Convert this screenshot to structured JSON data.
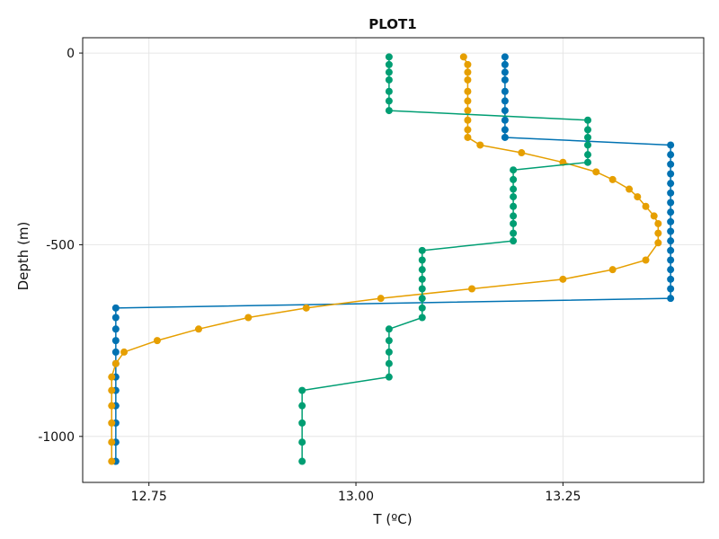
{
  "chart_data": {
    "type": "line",
    "title": "PLOT1",
    "xlabel": "T (ºC)",
    "ylabel": "Depth (m)",
    "xlim": [
      12.67,
      13.42
    ],
    "ylim": [
      -1120,
      40
    ],
    "xticks": [
      12.75,
      13.0,
      13.25
    ],
    "xtick_labels": [
      "12.75",
      "13.00",
      "13.25"
    ],
    "yticks": [
      0,
      -500,
      -1000
    ],
    "ytick_labels": [
      "0",
      "-500",
      "-1000"
    ],
    "grid": true,
    "markers": true,
    "series": [
      {
        "color": "#0072b2",
        "points": [
          [
            13.18,
            -10
          ],
          [
            13.18,
            -30
          ],
          [
            13.18,
            -50
          ],
          [
            13.18,
            -70
          ],
          [
            13.18,
            -100
          ],
          [
            13.18,
            -125
          ],
          [
            13.18,
            -150
          ],
          [
            13.18,
            -175
          ],
          [
            13.18,
            -200
          ],
          [
            13.18,
            -220
          ],
          [
            13.38,
            -240
          ],
          [
            13.38,
            -265
          ],
          [
            13.38,
            -290
          ],
          [
            13.38,
            -315
          ],
          [
            13.38,
            -340
          ],
          [
            13.38,
            -365
          ],
          [
            13.38,
            -390
          ],
          [
            13.38,
            -415
          ],
          [
            13.38,
            -440
          ],
          [
            13.38,
            -465
          ],
          [
            13.38,
            -490
          ],
          [
            13.38,
            -515
          ],
          [
            13.38,
            -540
          ],
          [
            13.38,
            -565
          ],
          [
            13.38,
            -590
          ],
          [
            13.38,
            -615
          ],
          [
            13.38,
            -640
          ],
          [
            12.71,
            -665
          ],
          [
            12.71,
            -690
          ],
          [
            12.71,
            -720
          ],
          [
            12.71,
            -750
          ],
          [
            12.71,
            -780
          ],
          [
            12.71,
            -810
          ],
          [
            12.71,
            -845
          ],
          [
            12.71,
            -880
          ],
          [
            12.71,
            -920
          ],
          [
            12.71,
            -965
          ],
          [
            12.71,
            -1015
          ],
          [
            12.71,
            -1065
          ]
        ]
      },
      {
        "color": "#e69f00",
        "points": [
          [
            13.13,
            -10
          ],
          [
            13.135,
            -30
          ],
          [
            13.135,
            -50
          ],
          [
            13.135,
            -70
          ],
          [
            13.135,
            -100
          ],
          [
            13.135,
            -125
          ],
          [
            13.135,
            -150
          ],
          [
            13.135,
            -175
          ],
          [
            13.135,
            -200
          ],
          [
            13.135,
            -220
          ],
          [
            13.15,
            -240
          ],
          [
            13.2,
            -260
          ],
          [
            13.25,
            -285
          ],
          [
            13.29,
            -310
          ],
          [
            13.31,
            -330
          ],
          [
            13.33,
            -355
          ],
          [
            13.34,
            -375
          ],
          [
            13.35,
            -400
          ],
          [
            13.36,
            -425
          ],
          [
            13.365,
            -445
          ],
          [
            13.365,
            -470
          ],
          [
            13.365,
            -495
          ],
          [
            13.35,
            -540
          ],
          [
            13.31,
            -565
          ],
          [
            13.25,
            -590
          ],
          [
            13.14,
            -615
          ],
          [
            13.03,
            -640
          ],
          [
            12.94,
            -665
          ],
          [
            12.87,
            -690
          ],
          [
            12.81,
            -720
          ],
          [
            12.76,
            -750
          ],
          [
            12.72,
            -780
          ],
          [
            12.71,
            -810
          ],
          [
            12.705,
            -845
          ],
          [
            12.705,
            -880
          ],
          [
            12.705,
            -920
          ],
          [
            12.705,
            -965
          ],
          [
            12.705,
            -1015
          ],
          [
            12.705,
            -1065
          ]
        ]
      },
      {
        "color": "#009e73",
        "points": [
          [
            13.04,
            -10
          ],
          [
            13.04,
            -30
          ],
          [
            13.04,
            -50
          ],
          [
            13.04,
            -70
          ],
          [
            13.04,
            -100
          ],
          [
            13.04,
            -125
          ],
          [
            13.04,
            -150
          ],
          [
            13.28,
            -175
          ],
          [
            13.28,
            -200
          ],
          [
            13.28,
            -220
          ],
          [
            13.28,
            -240
          ],
          [
            13.28,
            -265
          ],
          [
            13.28,
            -285
          ],
          [
            13.19,
            -305
          ],
          [
            13.19,
            -330
          ],
          [
            13.19,
            -355
          ],
          [
            13.19,
            -375
          ],
          [
            13.19,
            -400
          ],
          [
            13.19,
            -425
          ],
          [
            13.19,
            -445
          ],
          [
            13.19,
            -470
          ],
          [
            13.19,
            -490
          ],
          [
            13.08,
            -515
          ],
          [
            13.08,
            -540
          ],
          [
            13.08,
            -565
          ],
          [
            13.08,
            -590
          ],
          [
            13.08,
            -615
          ],
          [
            13.08,
            -640
          ],
          [
            13.08,
            -665
          ],
          [
            13.08,
            -690
          ],
          [
            13.04,
            -720
          ],
          [
            13.04,
            -750
          ],
          [
            13.04,
            -780
          ],
          [
            13.04,
            -810
          ],
          [
            13.04,
            -845
          ],
          [
            12.935,
            -880
          ],
          [
            12.935,
            -920
          ],
          [
            12.935,
            -965
          ],
          [
            12.935,
            -1015
          ],
          [
            12.935,
            -1065
          ]
        ]
      }
    ]
  }
}
